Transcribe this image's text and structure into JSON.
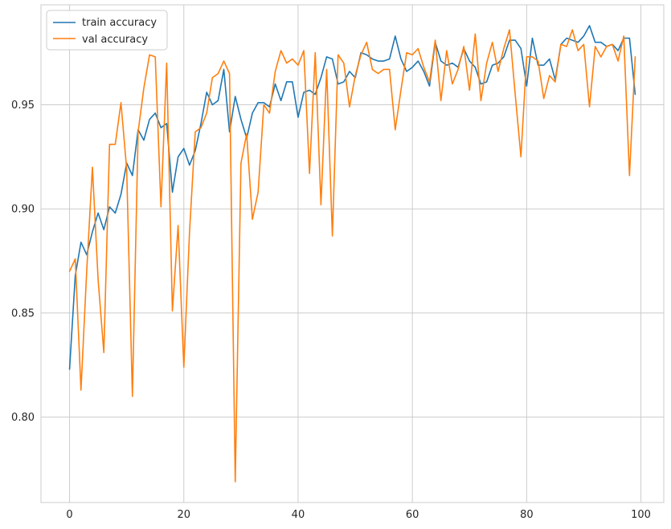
{
  "chart_data": {
    "type": "line",
    "title": "",
    "xlabel": "",
    "ylabel": "",
    "xlim": [
      -5,
      104
    ],
    "ylim": [
      0.759,
      0.998
    ],
    "xticks": [
      0,
      20,
      40,
      60,
      80,
      100
    ],
    "xtick_labels": [
      "0",
      "20",
      "40",
      "60",
      "80",
      "100"
    ],
    "yticks": [
      0.8,
      0.85,
      0.9,
      0.95
    ],
    "ytick_labels": [
      "0.80",
      "0.85",
      "0.90",
      "0.95"
    ],
    "grid": true,
    "legend_position": "top-left",
    "series": [
      {
        "name": "train accuracy",
        "color": "#1f77b4",
        "x": [
          0,
          1,
          2,
          3,
          4,
          5,
          6,
          7,
          8,
          9,
          10,
          11,
          12,
          13,
          14,
          15,
          16,
          17,
          18,
          19,
          20,
          21,
          22,
          23,
          24,
          25,
          26,
          27,
          28,
          29,
          30,
          31,
          32,
          33,
          34,
          35,
          36,
          37,
          38,
          39,
          40,
          41,
          42,
          43,
          44,
          45,
          46,
          47,
          48,
          49,
          50,
          51,
          52,
          53,
          54,
          55,
          56,
          57,
          58,
          59,
          60,
          61,
          62,
          63,
          64,
          65,
          66,
          67,
          68,
          69,
          70,
          71,
          72,
          73,
          74,
          75,
          76,
          77,
          78,
          79,
          80,
          81,
          82,
          83,
          84,
          85,
          86,
          87,
          88,
          89,
          90,
          91,
          92,
          93,
          94,
          95,
          96,
          97,
          98,
          99
        ],
        "values": [
          0.823,
          0.868,
          0.884,
          0.878,
          0.889,
          0.898,
          0.89,
          0.901,
          0.898,
          0.907,
          0.922,
          0.916,
          0.938,
          0.933,
          0.943,
          0.946,
          0.939,
          0.941,
          0.908,
          0.925,
          0.929,
          0.921,
          0.928,
          0.941,
          0.956,
          0.95,
          0.952,
          0.967,
          0.937,
          0.954,
          0.943,
          0.934,
          0.946,
          0.951,
          0.951,
          0.949,
          0.96,
          0.952,
          0.961,
          0.961,
          0.944,
          0.956,
          0.957,
          0.955,
          0.963,
          0.973,
          0.972,
          0.96,
          0.961,
          0.966,
          0.963,
          0.975,
          0.974,
          0.972,
          0.971,
          0.971,
          0.972,
          0.983,
          0.972,
          0.966,
          0.968,
          0.971,
          0.966,
          0.959,
          0.98,
          0.971,
          0.969,
          0.97,
          0.968,
          0.977,
          0.971,
          0.968,
          0.96,
          0.961,
          0.969,
          0.97,
          0.973,
          0.981,
          0.981,
          0.977,
          0.959,
          0.982,
          0.969,
          0.969,
          0.972,
          0.962,
          0.979,
          0.982,
          0.981,
          0.98,
          0.983,
          0.988,
          0.98,
          0.98,
          0.978,
          0.979,
          0.976,
          0.982,
          0.982,
          0.955
        ]
      },
      {
        "name": "val accuracy",
        "color": "#ff7f0e",
        "x": [
          0,
          1,
          2,
          3,
          4,
          5,
          6,
          7,
          8,
          9,
          10,
          11,
          12,
          13,
          14,
          15,
          16,
          17,
          18,
          19,
          20,
          21,
          22,
          23,
          24,
          25,
          26,
          27,
          28,
          29,
          30,
          31,
          32,
          33,
          34,
          35,
          36,
          37,
          38,
          39,
          40,
          41,
          42,
          43,
          44,
          45,
          46,
          47,
          48,
          49,
          50,
          51,
          52,
          53,
          54,
          55,
          56,
          57,
          58,
          59,
          60,
          61,
          62,
          63,
          64,
          65,
          66,
          67,
          68,
          69,
          70,
          71,
          72,
          73,
          74,
          75,
          76,
          77,
          78,
          79,
          80,
          81,
          82,
          83,
          84,
          85,
          86,
          87,
          88,
          89,
          90,
          91,
          92,
          93,
          94,
          95,
          96,
          97,
          98,
          99
        ],
        "values": [
          0.87,
          0.876,
          0.813,
          0.87,
          0.92,
          0.866,
          0.831,
          0.931,
          0.931,
          0.951,
          0.919,
          0.81,
          0.937,
          0.958,
          0.974,
          0.973,
          0.901,
          0.97,
          0.851,
          0.892,
          0.824,
          0.889,
          0.937,
          0.939,
          0.946,
          0.963,
          0.965,
          0.971,
          0.965,
          0.769,
          0.922,
          0.936,
          0.895,
          0.908,
          0.95,
          0.946,
          0.966,
          0.976,
          0.97,
          0.972,
          0.969,
          0.976,
          0.917,
          0.975,
          0.902,
          0.967,
          0.887,
          0.974,
          0.97,
          0.949,
          0.964,
          0.974,
          0.98,
          0.967,
          0.965,
          0.967,
          0.967,
          0.938,
          0.957,
          0.975,
          0.974,
          0.977,
          0.968,
          0.961,
          0.981,
          0.952,
          0.976,
          0.96,
          0.967,
          0.978,
          0.957,
          0.984,
          0.952,
          0.97,
          0.98,
          0.966,
          0.977,
          0.986,
          0.955,
          0.925,
          0.973,
          0.973,
          0.971,
          0.953,
          0.964,
          0.961,
          0.979,
          0.978,
          0.986,
          0.976,
          0.979,
          0.949,
          0.978,
          0.973,
          0.978,
          0.979,
          0.971,
          0.983,
          0.916,
          0.973
        ]
      }
    ]
  }
}
